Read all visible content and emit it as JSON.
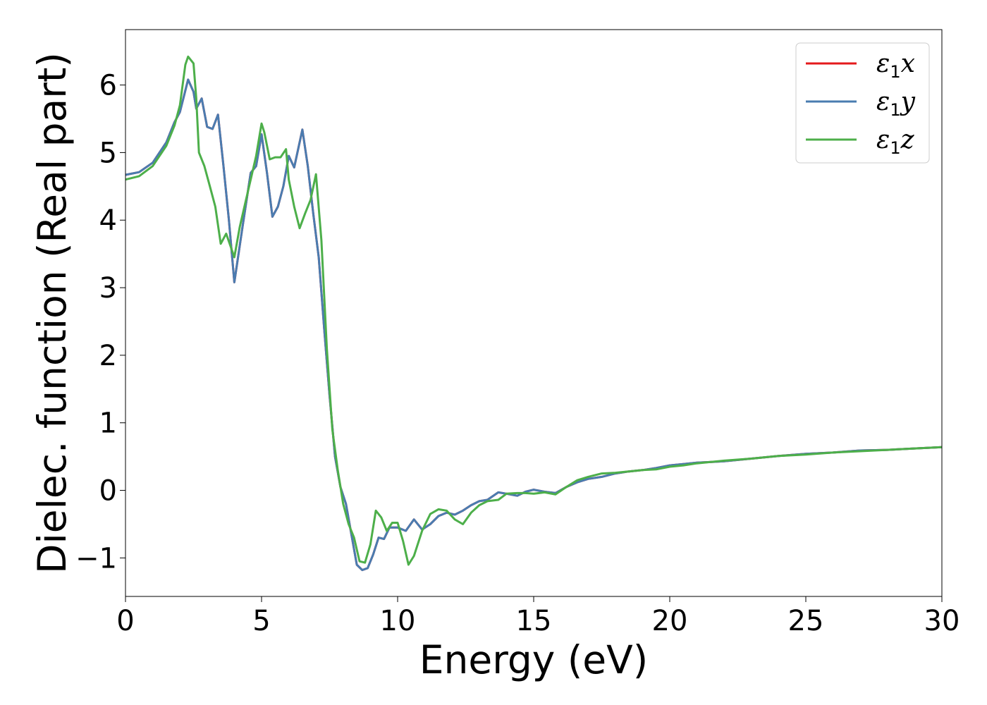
{
  "chart_data": {
    "type": "line",
    "title": "",
    "xlabel": "Energy (eV)",
    "ylabel": "Dielec. function (Real part)",
    "xlim": [
      0,
      30
    ],
    "ylim": [
      -1.57,
      6.82
    ],
    "xticks": [
      0,
      5,
      10,
      15,
      20,
      25,
      30
    ],
    "xtick_labels": [
      "0",
      "5",
      "10",
      "15",
      "20",
      "25",
      "30"
    ],
    "yticks": [
      -1,
      0,
      1,
      2,
      3,
      4,
      5,
      6
    ],
    "ytick_labels": [
      "−1",
      "0",
      "1",
      "2",
      "3",
      "4",
      "5",
      "6"
    ],
    "grid": false,
    "legend_position": "top-right",
    "series": [
      {
        "name": "ε1x",
        "legend": {
          "symbol": "ε",
          "sub": "1",
          "axis": "x"
        },
        "color": "#e41a1c",
        "x": [
          0,
          0.5,
          1.0,
          1.5,
          1.8,
          2.0,
          2.3,
          2.5,
          2.6,
          2.8,
          3.0,
          3.2,
          3.4,
          3.6,
          3.8,
          4.0,
          4.3,
          4.6,
          4.8,
          5.0,
          5.2,
          5.4,
          5.6,
          5.8,
          6.0,
          6.2,
          6.5,
          6.7,
          6.9,
          7.1,
          7.3,
          7.5,
          7.7,
          7.9,
          8.1,
          8.3,
          8.5,
          8.7,
          8.9,
          9.1,
          9.3,
          9.5,
          9.7,
          10.0,
          10.3,
          10.6,
          10.9,
          11.2,
          11.5,
          11.8,
          12.1,
          12.4,
          12.7,
          13.0,
          13.3,
          13.7,
          14.0,
          14.4,
          14.7,
          15.0,
          15.4,
          15.8,
          16.2,
          16.6,
          17.0,
          17.5,
          18.0,
          18.5,
          19.0,
          19.5,
          20.0,
          20.5,
          21.0,
          22.0,
          23.0,
          24.0,
          25.0,
          26.0,
          27.0,
          28.0,
          29.0,
          30.0
        ],
        "y": [
          4.67,
          4.71,
          4.85,
          5.15,
          5.45,
          5.6,
          6.08,
          5.9,
          5.65,
          5.8,
          5.38,
          5.35,
          5.56,
          4.8,
          4.0,
          3.08,
          3.9,
          4.7,
          4.8,
          5.27,
          4.7,
          4.05,
          4.2,
          4.5,
          4.95,
          4.78,
          5.34,
          4.8,
          4.1,
          3.45,
          2.4,
          1.4,
          0.5,
          0.05,
          -0.2,
          -0.65,
          -1.1,
          -1.18,
          -1.15,
          -0.95,
          -0.7,
          -0.72,
          -0.55,
          -0.55,
          -0.6,
          -0.43,
          -0.58,
          -0.5,
          -0.38,
          -0.33,
          -0.36,
          -0.3,
          -0.22,
          -0.16,
          -0.14,
          -0.03,
          -0.05,
          -0.08,
          -0.02,
          0.01,
          -0.02,
          -0.04,
          0.05,
          0.12,
          0.17,
          0.2,
          0.25,
          0.28,
          0.3,
          0.33,
          0.37,
          0.39,
          0.41,
          0.43,
          0.47,
          0.51,
          0.54,
          0.56,
          0.59,
          0.6,
          0.62,
          0.64
        ]
      },
      {
        "name": "ε1y",
        "legend": {
          "symbol": "ε",
          "sub": "1",
          "axis": "y"
        },
        "color": "#4a7cb0",
        "x": [
          0,
          0.5,
          1.0,
          1.5,
          1.8,
          2.0,
          2.3,
          2.5,
          2.6,
          2.8,
          3.0,
          3.2,
          3.4,
          3.6,
          3.8,
          4.0,
          4.3,
          4.6,
          4.8,
          5.0,
          5.2,
          5.4,
          5.6,
          5.8,
          6.0,
          6.2,
          6.5,
          6.7,
          6.9,
          7.1,
          7.3,
          7.5,
          7.7,
          7.9,
          8.1,
          8.3,
          8.5,
          8.7,
          8.9,
          9.1,
          9.3,
          9.5,
          9.7,
          10.0,
          10.3,
          10.6,
          10.9,
          11.2,
          11.5,
          11.8,
          12.1,
          12.4,
          12.7,
          13.0,
          13.3,
          13.7,
          14.0,
          14.4,
          14.7,
          15.0,
          15.4,
          15.8,
          16.2,
          16.6,
          17.0,
          17.5,
          18.0,
          18.5,
          19.0,
          19.5,
          20.0,
          20.5,
          21.0,
          22.0,
          23.0,
          24.0,
          25.0,
          26.0,
          27.0,
          28.0,
          29.0,
          30.0
        ],
        "y": [
          4.67,
          4.71,
          4.85,
          5.15,
          5.45,
          5.6,
          6.08,
          5.9,
          5.65,
          5.8,
          5.38,
          5.35,
          5.56,
          4.8,
          4.0,
          3.08,
          3.9,
          4.7,
          4.8,
          5.27,
          4.7,
          4.05,
          4.2,
          4.5,
          4.95,
          4.78,
          5.34,
          4.8,
          4.1,
          3.45,
          2.4,
          1.4,
          0.5,
          0.05,
          -0.2,
          -0.65,
          -1.1,
          -1.18,
          -1.15,
          -0.95,
          -0.7,
          -0.72,
          -0.55,
          -0.55,
          -0.6,
          -0.43,
          -0.58,
          -0.5,
          -0.38,
          -0.33,
          -0.36,
          -0.3,
          -0.22,
          -0.16,
          -0.14,
          -0.03,
          -0.05,
          -0.08,
          -0.02,
          0.01,
          -0.02,
          -0.04,
          0.05,
          0.12,
          0.17,
          0.2,
          0.25,
          0.28,
          0.3,
          0.33,
          0.37,
          0.39,
          0.41,
          0.43,
          0.47,
          0.51,
          0.54,
          0.56,
          0.59,
          0.6,
          0.62,
          0.64
        ]
      },
      {
        "name": "ε1z",
        "legend": {
          "symbol": "ε",
          "sub": "1",
          "axis": "z"
        },
        "color": "#4daf4a",
        "x": [
          0,
          0.5,
          1.0,
          1.5,
          1.8,
          2.0,
          2.2,
          2.3,
          2.5,
          2.6,
          2.7,
          2.9,
          3.1,
          3.3,
          3.5,
          3.7,
          4.0,
          4.2,
          4.4,
          4.6,
          4.8,
          5.0,
          5.1,
          5.3,
          5.5,
          5.7,
          5.9,
          6.0,
          6.2,
          6.4,
          6.6,
          6.8,
          7.0,
          7.2,
          7.4,
          7.6,
          7.8,
          8.0,
          8.2,
          8.4,
          8.6,
          8.8,
          9.0,
          9.2,
          9.4,
          9.6,
          9.8,
          10.0,
          10.2,
          10.4,
          10.6,
          10.9,
          11.2,
          11.5,
          11.8,
          12.1,
          12.4,
          12.7,
          13.0,
          13.3,
          13.7,
          14.0,
          14.4,
          14.7,
          15.0,
          15.4,
          15.8,
          16.2,
          16.6,
          17.0,
          17.5,
          18.0,
          18.5,
          19.0,
          19.5,
          20.0,
          20.5,
          21.0,
          22.0,
          23.0,
          24.0,
          25.0,
          26.0,
          27.0,
          28.0,
          29.0,
          30.0
        ],
        "y": [
          4.6,
          4.65,
          4.8,
          5.1,
          5.4,
          5.7,
          6.3,
          6.42,
          6.32,
          5.8,
          5.0,
          4.8,
          4.5,
          4.2,
          3.65,
          3.8,
          3.45,
          3.9,
          4.25,
          4.6,
          4.95,
          5.43,
          5.3,
          4.9,
          4.93,
          4.93,
          5.05,
          4.6,
          4.2,
          3.88,
          4.1,
          4.3,
          4.68,
          3.7,
          2.1,
          0.9,
          0.3,
          -0.2,
          -0.5,
          -0.7,
          -1.05,
          -1.07,
          -0.8,
          -0.3,
          -0.4,
          -0.6,
          -0.48,
          -0.48,
          -0.75,
          -1.1,
          -0.97,
          -0.6,
          -0.35,
          -0.28,
          -0.3,
          -0.43,
          -0.5,
          -0.33,
          -0.22,
          -0.16,
          -0.14,
          -0.05,
          -0.04,
          -0.04,
          -0.05,
          -0.03,
          -0.06,
          0.05,
          0.15,
          0.2,
          0.25,
          0.26,
          0.28,
          0.3,
          0.31,
          0.35,
          0.37,
          0.4,
          0.44,
          0.47,
          0.51,
          0.53,
          0.56,
          0.58,
          0.6,
          0.62,
          0.64
        ]
      }
    ]
  }
}
